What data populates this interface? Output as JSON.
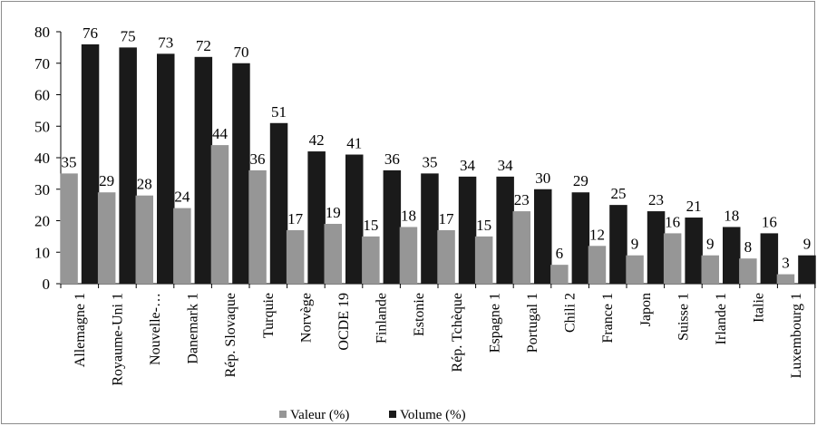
{
  "chart_data": {
    "type": "bar",
    "categories": [
      "Allemagne 1",
      "Royaume-Uni 1",
      "Nouvelle-…",
      "Danemark 1",
      "Rép. Slovaque",
      "Turquie",
      "Norvège",
      "OCDE 19",
      "Finlande",
      "Estonie",
      "Rép. Tchèque",
      "Espagne 1",
      "Portugal 1",
      "Chili 2",
      "France 1",
      "Japon",
      "Suisse 1",
      "Irlande 1",
      "Italie",
      "Luxembourg 1"
    ],
    "series": [
      {
        "name": "Valeur (%)",
        "color": "#969696",
        "values": [
          35,
          29,
          28,
          24,
          44,
          36,
          17,
          19,
          15,
          18,
          17,
          15,
          23,
          6,
          12,
          9,
          16,
          9,
          8,
          3
        ]
      },
      {
        "name": "Volume (%)",
        "color": "#1a1a1a",
        "values": [
          76,
          75,
          73,
          72,
          70,
          51,
          42,
          41,
          36,
          35,
          34,
          34,
          30,
          29,
          25,
          23,
          21,
          18,
          16,
          9
        ]
      }
    ],
    "yticks": [
      "0",
      "10",
      "20",
      "30",
      "40",
      "50",
      "60",
      "70",
      "80"
    ],
    "ylim": [
      0,
      80
    ],
    "grid": false,
    "legend_position": "bottom"
  }
}
